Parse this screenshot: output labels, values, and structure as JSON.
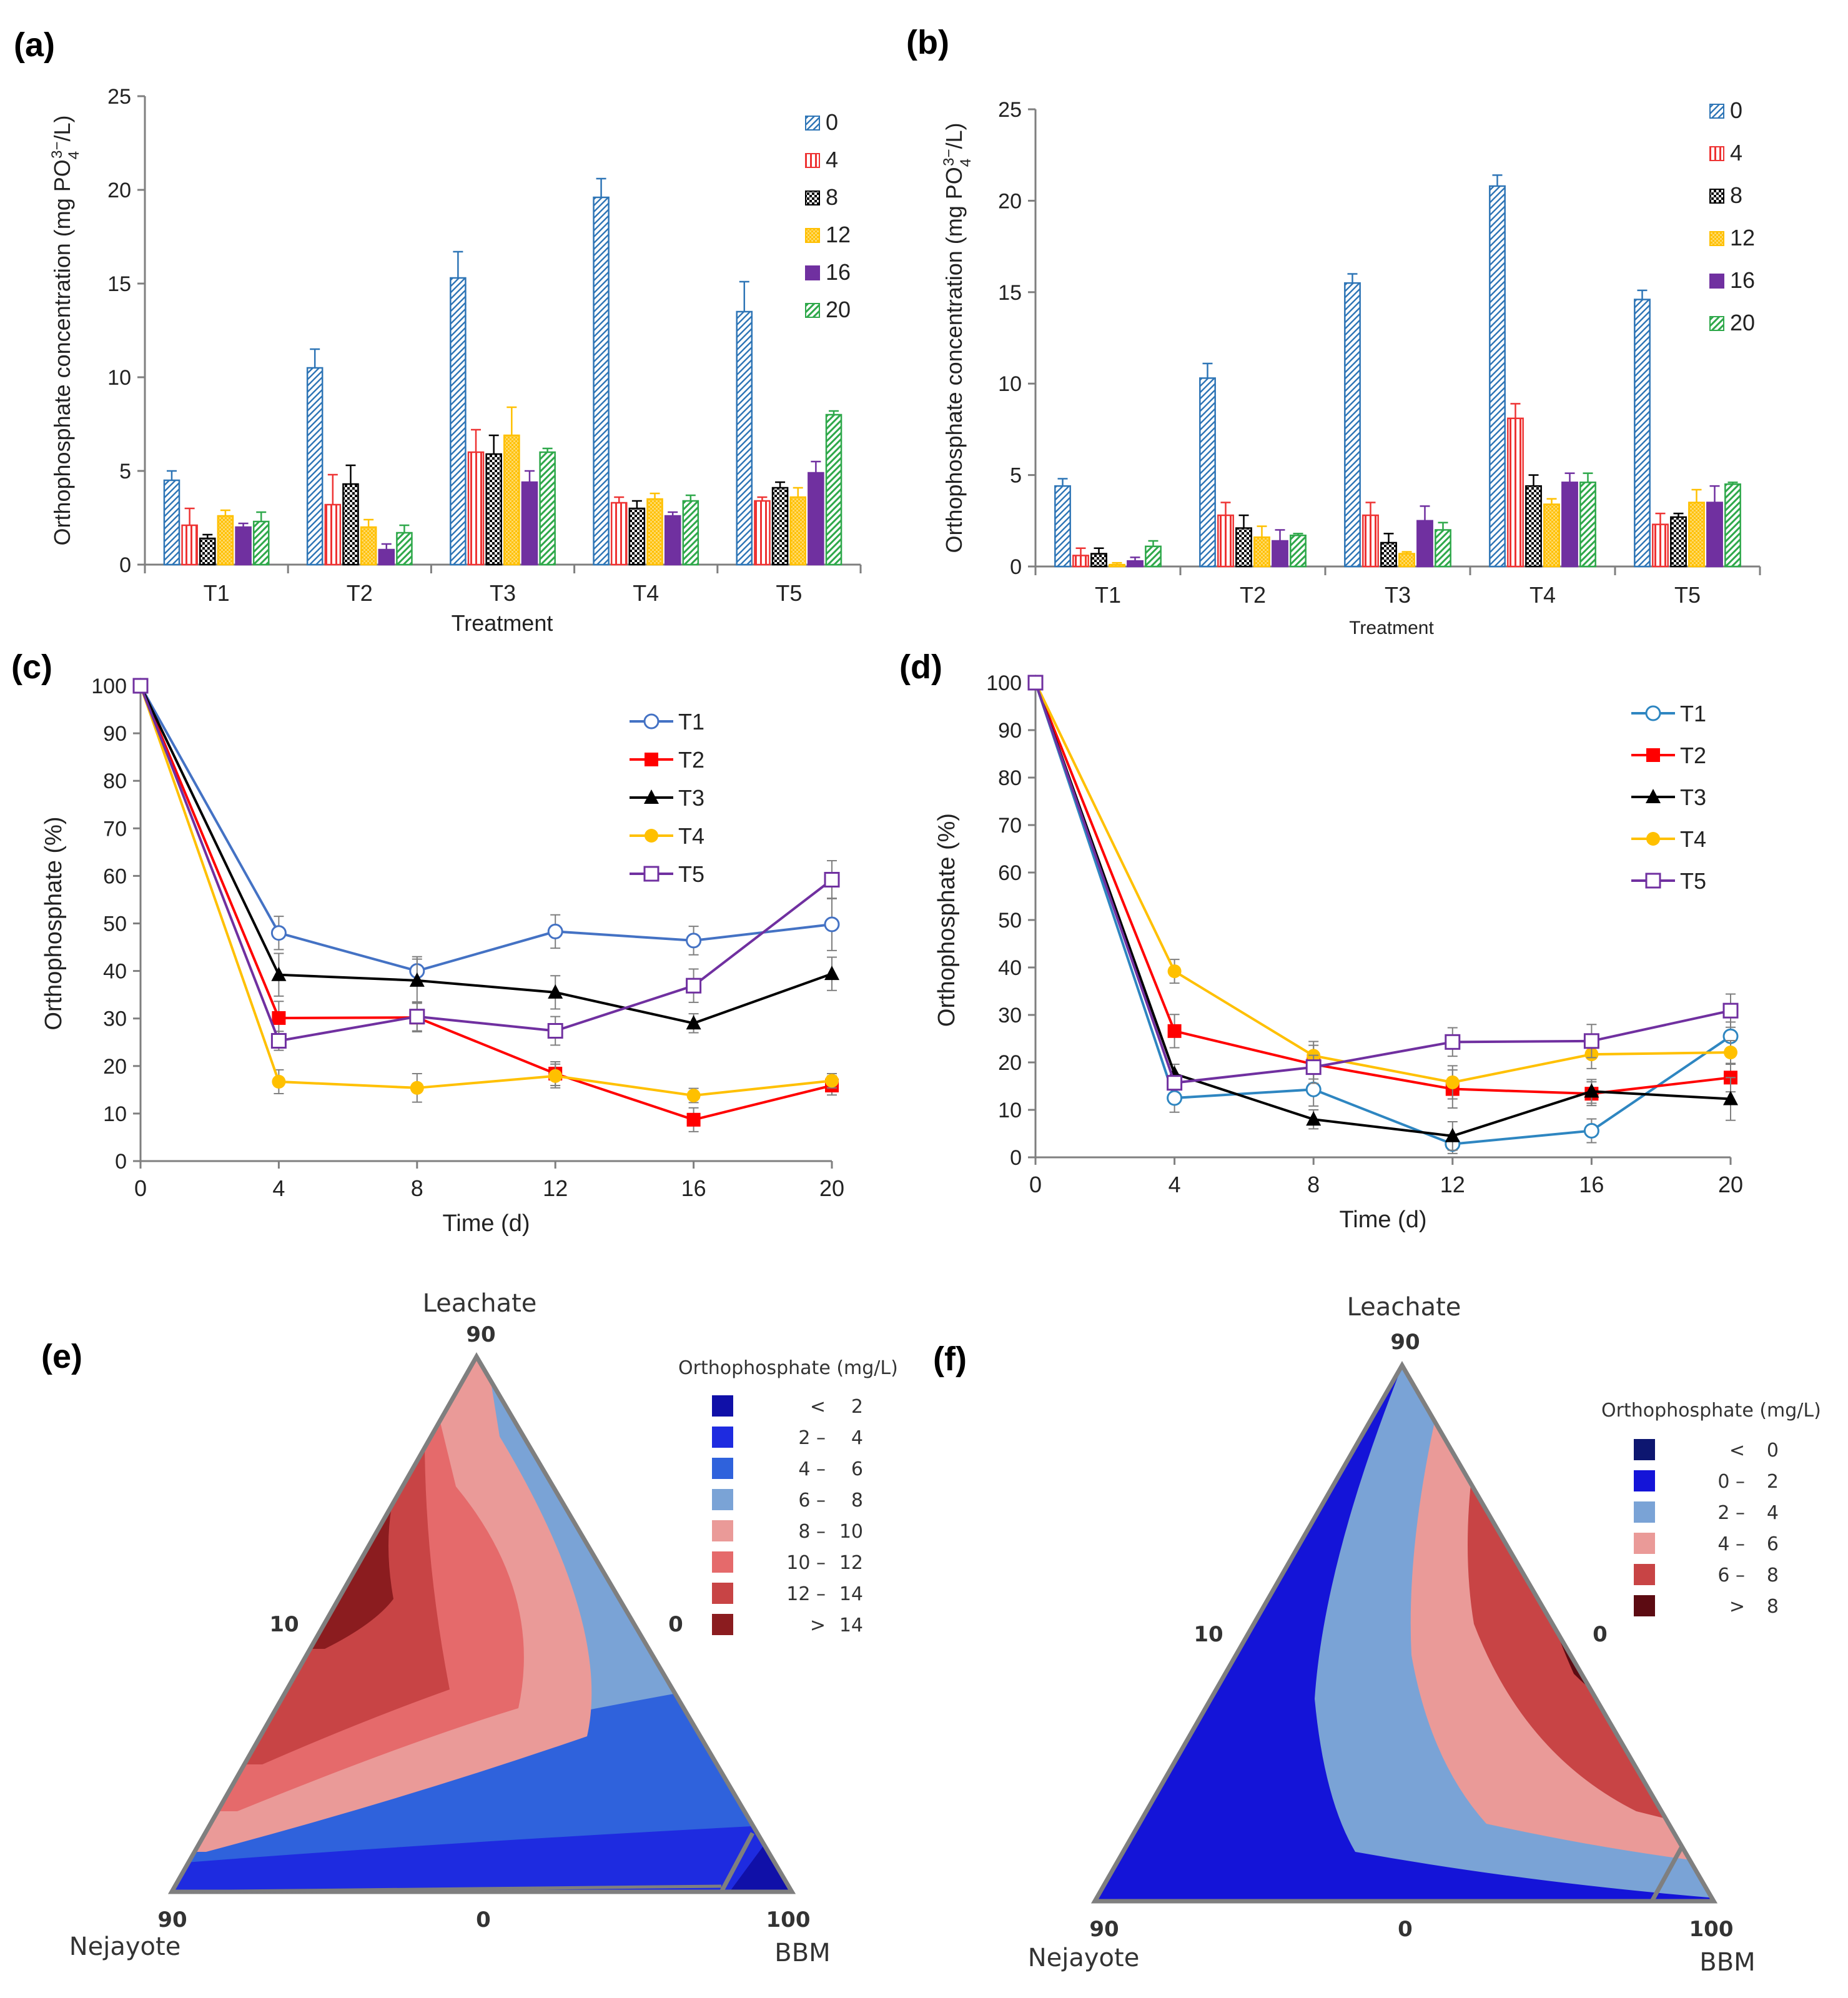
{
  "colors": {
    "d0": "#2e75b6",
    "d4": "#ee3333",
    "d8": "#000000",
    "d12": "#ffc000",
    "d16": "#7030a0",
    "d20": "#2ea84a",
    "T1": "#4472c4",
    "T1d": "#2e86c1",
    "T2": "#ff0000",
    "T3": "#000000",
    "T4": "#ffc000",
    "T5": "#7030a0"
  },
  "chart_data": [
    {
      "id": "a",
      "panel_label": "(a)",
      "type": "bar",
      "ylabel": "Orthophosphate concentration (mg PO₄³⁻/L)",
      "ylabel_main": "Orthophosphate  concentration  (mg PO",
      "ylabel_sub": "4",
      "ylabel_sup": "3−",
      "ylabel_tail": "/L)",
      "xlabel": "Treatment",
      "ylim": [
        0,
        25
      ],
      "yticks": [
        "0",
        "5",
        "10",
        "15",
        "20",
        "25"
      ],
      "categories": [
        "T1",
        "T2",
        "T3",
        "T4",
        "T5"
      ],
      "series": [
        {
          "name": "0",
          "values": [
            4.5,
            10.5,
            15.3,
            19.6,
            13.5
          ],
          "errors": [
            0.5,
            1.0,
            1.4,
            1.0,
            1.6
          ]
        },
        {
          "name": "4",
          "values": [
            2.1,
            3.2,
            6.0,
            3.3,
            3.4
          ],
          "errors": [
            0.9,
            1.6,
            1.2,
            0.3,
            0.2
          ]
        },
        {
          "name": "8",
          "values": [
            1.4,
            4.3,
            5.9,
            3.0,
            4.1
          ],
          "errors": [
            0.2,
            1.0,
            1.0,
            0.4,
            0.3
          ]
        },
        {
          "name": "12",
          "values": [
            2.6,
            2.0,
            6.9,
            3.5,
            3.6
          ],
          "errors": [
            0.3,
            0.4,
            1.5,
            0.3,
            0.5
          ]
        },
        {
          "name": "16",
          "values": [
            2.0,
            0.8,
            4.4,
            2.6,
            4.9
          ],
          "errors": [
            0.2,
            0.3,
            0.6,
            0.2,
            0.6
          ]
        },
        {
          "name": "20",
          "values": [
            2.3,
            1.7,
            6.0,
            3.4,
            8.0
          ],
          "errors": [
            0.5,
            0.4,
            0.2,
            0.3,
            0.2
          ]
        }
      ]
    },
    {
      "id": "b",
      "panel_label": "(b)",
      "type": "bar",
      "ylabel": "Orthophosphate concentration (mg PO₄³⁻/L)",
      "ylabel_main": "Orthophosphate  concentration  (mg PO",
      "ylabel_sub": "4",
      "ylabel_sup": "3−",
      "ylabel_tail": "/L)",
      "xlabel": "Treatment",
      "ylim": [
        0,
        25
      ],
      "yticks": [
        "0",
        "5",
        "10",
        "15",
        "20",
        "25"
      ],
      "categories": [
        "T1",
        "T2",
        "T3",
        "T4",
        "T5"
      ],
      "series": [
        {
          "name": "0",
          "values": [
            4.4,
            10.3,
            15.5,
            20.8,
            14.6
          ],
          "errors": [
            0.4,
            0.8,
            0.5,
            0.6,
            0.5
          ]
        },
        {
          "name": "4",
          "values": [
            0.6,
            2.8,
            2.8,
            8.1,
            2.3
          ],
          "errors": [
            0.4,
            0.7,
            0.7,
            0.8,
            0.6
          ]
        },
        {
          "name": "8",
          "values": [
            0.7,
            2.1,
            1.3,
            4.4,
            2.7
          ],
          "errors": [
            0.3,
            0.7,
            0.5,
            0.6,
            0.2
          ]
        },
        {
          "name": "12",
          "values": [
            0.1,
            1.6,
            0.7,
            3.4,
            3.5
          ],
          "errors": [
            0.1,
            0.6,
            0.1,
            0.3,
            0.7
          ]
        },
        {
          "name": "16",
          "values": [
            0.3,
            1.4,
            2.5,
            4.6,
            3.5
          ],
          "errors": [
            0.2,
            0.6,
            0.8,
            0.5,
            0.9
          ]
        },
        {
          "name": "20",
          "values": [
            1.1,
            1.7,
            2.0,
            4.6,
            4.5
          ],
          "errors": [
            0.3,
            0.1,
            0.4,
            0.5,
            0.1
          ]
        }
      ]
    },
    {
      "id": "c",
      "panel_label": "(c)",
      "type": "line",
      "ylabel": "Orthophosphate  (%)",
      "xlabel": "Time (d)",
      "x": [
        0,
        4,
        8,
        12,
        16,
        20
      ],
      "xticks": [
        "0",
        "4",
        "8",
        "12",
        "16",
        "20"
      ],
      "ylim": [
        0,
        100
      ],
      "yticks": [
        "0",
        "10",
        "20",
        "30",
        "40",
        "50",
        "60",
        "70",
        "80",
        "90",
        "100"
      ],
      "series": [
        {
          "name": "T1",
          "values": [
            100,
            48.0,
            40.0,
            48.3,
            46.4,
            49.8
          ],
          "errors": [
            0,
            3.5,
            3.0,
            3.5,
            3.0,
            5.5
          ]
        },
        {
          "name": "T2",
          "values": [
            100,
            30.1,
            30.2,
            18.4,
            8.7,
            15.9
          ],
          "errors": [
            0,
            3.5,
            3.0,
            2.5,
            2.5,
            2.0
          ]
        },
        {
          "name": "T3",
          "values": [
            100,
            39.2,
            38.0,
            35.5,
            29.0,
            39.4
          ],
          "errors": [
            0,
            4.5,
            4.5,
            3.5,
            2.0,
            3.5
          ]
        },
        {
          "name": "T4",
          "values": [
            100,
            16.7,
            15.4,
            17.9,
            13.8,
            16.9
          ],
          "errors": [
            0,
            2.5,
            3.0,
            2.5,
            1.5,
            1.5
          ]
        },
        {
          "name": "T5",
          "values": [
            100,
            25.3,
            30.4,
            27.4,
            36.9,
            59.2
          ],
          "errors": [
            0,
            2.0,
            3.0,
            3.0,
            3.5,
            4.0
          ]
        }
      ]
    },
    {
      "id": "d",
      "panel_label": "(d)",
      "type": "line",
      "ylabel": "Orthophosphate  (%)",
      "xlabel": "Time (d)",
      "x": [
        0,
        4,
        8,
        12,
        16,
        20
      ],
      "xticks": [
        "0",
        "4",
        "8",
        "12",
        "16",
        "20"
      ],
      "ylim": [
        0,
        100
      ],
      "yticks": [
        "0",
        "10",
        "20",
        "30",
        "40",
        "50",
        "60",
        "70",
        "80",
        "90",
        "100"
      ],
      "series": [
        {
          "name": "T1",
          "values": [
            100,
            12.5,
            14.3,
            2.8,
            5.6,
            25.5
          ],
          "errors": [
            0,
            3.0,
            3.5,
            2.0,
            2.5,
            3.0
          ]
        },
        {
          "name": "T2",
          "values": [
            100,
            26.6,
            19.6,
            14.4,
            13.4,
            16.8
          ],
          "errors": [
            0,
            3.5,
            4.0,
            4.0,
            2.5,
            3.0
          ]
        },
        {
          "name": "T3",
          "values": [
            100,
            17.6,
            8.0,
            4.5,
            13.9,
            12.3
          ],
          "errors": [
            0,
            2.0,
            2.0,
            3.0,
            2.5,
            4.5
          ]
        },
        {
          "name": "T4",
          "values": [
            100,
            39.2,
            21.4,
            15.8,
            21.7,
            22.1
          ],
          "errors": [
            0,
            2.5,
            3.0,
            3.5,
            3.0,
            2.5
          ]
        },
        {
          "name": "T5",
          "values": [
            100,
            15.7,
            19.0,
            24.3,
            24.5,
            30.9
          ],
          "errors": [
            0,
            1.5,
            2.5,
            3.0,
            3.5,
            3.5
          ]
        }
      ]
    },
    {
      "id": "e",
      "panel_label": "(e)",
      "type": "ternary_contour",
      "top_vertex": "Leachate",
      "left_vertex": "Nejayote",
      "right_vertex": "BBM",
      "tick_top": "90",
      "tick_left_side": "10",
      "tick_right_side": "0",
      "tick_bottom_left": "90",
      "tick_bottom_mid": "0",
      "tick_bottom_right": "100",
      "legend_title": "Orthophosphate (mg/L)",
      "legend": [
        {
          "lo": "<",
          "hi": "2",
          "color": "#1010a8"
        },
        {
          "lo": "2 –",
          "hi": "4",
          "color": "#1e2be0"
        },
        {
          "lo": "4 –",
          "hi": "6",
          "color": "#2f62dc"
        },
        {
          "lo": "6 –",
          "hi": "8",
          "color": "#7aa3d6"
        },
        {
          "lo": "8 –",
          "hi": "10",
          "color": "#ea9a98"
        },
        {
          "lo": "10 –",
          "hi": "12",
          "color": "#e56a6b"
        },
        {
          "lo": "12 –",
          "hi": "14",
          "color": "#c84445"
        },
        {
          "lo": ">",
          "hi": "14",
          "color": "#8b1c1f"
        }
      ]
    },
    {
      "id": "f",
      "panel_label": "(f)",
      "type": "ternary_contour",
      "top_vertex": "Leachate",
      "left_vertex": "Nejayote",
      "right_vertex": "BBM",
      "tick_top": "90",
      "tick_left_side": "10",
      "tick_right_side": "0",
      "tick_bottom_left": "90",
      "tick_bottom_mid": "0",
      "tick_bottom_right": "100",
      "legend_title": "Orthophosphate (mg/L)",
      "legend": [
        {
          "lo": "<",
          "hi": "0",
          "color": "#0d1670"
        },
        {
          "lo": "0 –",
          "hi": "2",
          "color": "#1414d8"
        },
        {
          "lo": "2 –",
          "hi": "4",
          "color": "#7aa3d6"
        },
        {
          "lo": "4 –",
          "hi": "6",
          "color": "#ea9a98"
        },
        {
          "lo": "6 –",
          "hi": "8",
          "color": "#c84445"
        },
        {
          "lo": ">",
          "hi": "8",
          "color": "#5c0b12"
        }
      ]
    }
  ]
}
